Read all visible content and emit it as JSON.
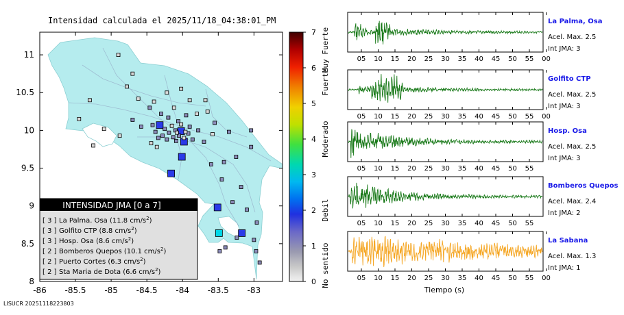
{
  "map": {
    "title": "Intensidad calculada el 2025/11/18_04:38:01_PM",
    "footer_id": "LISUCR 20251118223803",
    "x_ticks": [
      "-86",
      "-85.5",
      "-85",
      "-84.5",
      "-84",
      "-83.5",
      "-83"
    ],
    "y_ticks": [
      "8",
      "8.5",
      "9",
      "9.5",
      "10",
      "10.5",
      "11"
    ],
    "colorbar": {
      "ticks": [
        "0",
        "1",
        "2",
        "3",
        "4",
        "5",
        "6",
        "7"
      ],
      "labels": [
        "No sentido",
        "Debil",
        "Moderado",
        "Fuerte",
        "Muy Fuerte"
      ]
    },
    "legend": {
      "title": "INTENSIDAD JMA [0 a 7]",
      "items": [
        {
          "level": "[ 3 ]",
          "text": "La Palma. Osa (11.8 cm/s",
          "exp": "2",
          "close": ")"
        },
        {
          "level": "[ 3 ]",
          "text": "Golfito CTP (8.8 cm/s",
          "exp": "2",
          "close": ")"
        },
        {
          "level": "[ 3 ]",
          "text": "Hosp. Osa (8.6 cm/s",
          "exp": "2",
          "close": ")"
        },
        {
          "level": "[ 2 ]",
          "text": "Bomberos Quepos (10.1 cm/s",
          "exp": "2",
          "close": ")"
        },
        {
          "level": "[ 2 ]",
          "text": "Puerto Cortes (6.3 cm/s",
          "exp": "2",
          "close": ")"
        },
        {
          "level": "[ 2 ]",
          "text": "Sta Maria de Dota (6.6 cm/s",
          "exp": "2",
          "close": ")"
        }
      ]
    }
  },
  "seismograms": {
    "x_ticks": [
      "05",
      "10",
      "15",
      "20",
      "25",
      "30",
      "35",
      "40",
      "45",
      "50",
      "55",
      "00"
    ],
    "x_label": "Tiempo (s)",
    "panels": [
      {
        "station": "La Palma, Osa",
        "acel": "Acel. Max. 2.5",
        "jma": "Int JMA: 3",
        "color": "#1a7a1a",
        "profile": "burst"
      },
      {
        "station": "Golfito CTP",
        "acel": "Acel. Max. 2.5",
        "jma": "Int JMA: 3",
        "color": "#1a7a1a",
        "profile": "wide"
      },
      {
        "station": "Hosp. Osa",
        "acel": "Acel. Max. 2.5",
        "jma": "Int JMA: 3",
        "color": "#1a7a1a",
        "profile": "early"
      },
      {
        "station": "Bomberos Quepos",
        "acel": "Acel. Max. 2.4",
        "jma": "Int JMA: 2",
        "color": "#1a7a1a",
        "profile": "early"
      },
      {
        "station": "La Sabana",
        "acel": "Acel. Max. 1.3",
        "jma": "Int JMA: 1",
        "color": "#f5a623",
        "profile": "long"
      }
    ]
  },
  "chart_data": [
    {
      "type": "scatter",
      "title": "Intensidad calculada el 2025/11/18_04:38:01_PM",
      "xlabel": "",
      "ylabel": "",
      "xlim": [
        -86.0,
        -82.6
      ],
      "ylim": [
        8.0,
        11.3
      ],
      "colorbar_range": [
        0,
        7
      ],
      "stations": [
        {
          "lon": -84.32,
          "lat": 10.07,
          "jma": 2
        },
        {
          "lon": -84.02,
          "lat": 9.99,
          "jma": 2
        },
        {
          "lon": -83.98,
          "lat": 9.85,
          "jma": 2
        },
        {
          "lon": -84.01,
          "lat": 9.65,
          "jma": 2
        },
        {
          "lon": -84.16,
          "lat": 9.43,
          "jma": 2
        },
        {
          "lon": -83.51,
          "lat": 8.98,
          "jma": 2
        },
        {
          "lon": -83.49,
          "lat": 8.64,
          "jma": 3
        },
        {
          "lon": -83.17,
          "lat": 8.64,
          "jma": 2
        },
        {
          "lon": -84.05,
          "lat": 9.93,
          "jma": 1
        },
        {
          "lon": -84.13,
          "lat": 9.91,
          "jma": 1
        },
        {
          "lon": -84.19,
          "lat": 9.97,
          "jma": 1
        },
        {
          "lon": -84.22,
          "lat": 9.88,
          "jma": 1
        },
        {
          "lon": -84.09,
          "lat": 9.86,
          "jma": 1
        },
        {
          "lon": -84.28,
          "lat": 9.93,
          "jma": 1
        },
        {
          "lon": -84.42,
          "lat": 10.07,
          "jma": 1
        },
        {
          "lon": -84.38,
          "lat": 9.98,
          "jma": 1
        },
        {
          "lon": -84.34,
          "lat": 9.9,
          "jma": 1
        },
        {
          "lon": -84.25,
          "lat": 10.02,
          "jma": 1
        },
        {
          "lon": -84.1,
          "lat": 10.0,
          "jma": 1
        },
        {
          "lon": -84.06,
          "lat": 10.12,
          "jma": 1
        },
        {
          "lon": -83.92,
          "lat": 9.96,
          "jma": 1
        },
        {
          "lon": -83.9,
          "lat": 10.05,
          "jma": 1
        },
        {
          "lon": -83.86,
          "lat": 9.88,
          "jma": 1
        },
        {
          "lon": -83.78,
          "lat": 10.0,
          "jma": 1
        },
        {
          "lon": -83.7,
          "lat": 9.85,
          "jma": 1
        },
        {
          "lon": -84.3,
          "lat": 10.22,
          "jma": 1
        },
        {
          "lon": -84.2,
          "lat": 10.17,
          "jma": 1
        },
        {
          "lon": -83.95,
          "lat": 10.2,
          "jma": 1
        },
        {
          "lon": -84.46,
          "lat": 10.3,
          "jma": 1
        },
        {
          "lon": -84.58,
          "lat": 10.05,
          "jma": 1
        },
        {
          "lon": -84.7,
          "lat": 10.14,
          "jma": 1
        },
        {
          "lon": -83.55,
          "lat": 10.1,
          "jma": 1
        },
        {
          "lon": -83.35,
          "lat": 9.98,
          "jma": 1
        },
        {
          "lon": -83.25,
          "lat": 9.65,
          "jma": 1
        },
        {
          "lon": -83.6,
          "lat": 9.55,
          "jma": 1
        },
        {
          "lon": -83.04,
          "lat": 9.78,
          "jma": 1
        },
        {
          "lon": -83.04,
          "lat": 10.0,
          "jma": 1
        },
        {
          "lon": -83.45,
          "lat": 9.35,
          "jma": 1
        },
        {
          "lon": -83.3,
          "lat": 9.05,
          "jma": 1
        },
        {
          "lon": -83.1,
          "lat": 8.95,
          "jma": 1
        },
        {
          "lon": -82.96,
          "lat": 8.78,
          "jma": 1
        },
        {
          "lon": -83.0,
          "lat": 8.55,
          "jma": 1
        },
        {
          "lon": -83.24,
          "lat": 8.58,
          "jma": 1
        },
        {
          "lon": -83.4,
          "lat": 8.45,
          "jma": 1
        },
        {
          "lon": -83.48,
          "lat": 8.4,
          "jma": 1
        },
        {
          "lon": -82.97,
          "lat": 8.4,
          "jma": 1
        },
        {
          "lon": -82.92,
          "lat": 8.25,
          "jma": 1
        },
        {
          "lon": -83.18,
          "lat": 9.25,
          "jma": 1
        },
        {
          "lon": -83.42,
          "lat": 9.58,
          "jma": 1
        },
        {
          "lon": -84.02,
          "lat": 10.55,
          "jma": 0
        },
        {
          "lon": -84.7,
          "lat": 10.75,
          "jma": 0
        },
        {
          "lon": -84.9,
          "lat": 11.0,
          "jma": 0
        },
        {
          "lon": -84.78,
          "lat": 10.58,
          "jma": 0
        },
        {
          "lon": -85.3,
          "lat": 10.4,
          "jma": 0
        },
        {
          "lon": -85.45,
          "lat": 10.15,
          "jma": 0
        },
        {
          "lon": -85.1,
          "lat": 10.02,
          "jma": 0
        },
        {
          "lon": -84.88,
          "lat": 9.93,
          "jma": 0
        },
        {
          "lon": -84.62,
          "lat": 10.42,
          "jma": 0
        },
        {
          "lon": -84.22,
          "lat": 10.5,
          "jma": 0
        },
        {
          "lon": -83.9,
          "lat": 10.4,
          "jma": 0
        },
        {
          "lon": -83.68,
          "lat": 10.4,
          "jma": 0
        },
        {
          "lon": -84.12,
          "lat": 10.3,
          "jma": 0
        },
        {
          "lon": -84.4,
          "lat": 10.38,
          "jma": 0
        },
        {
          "lon": -83.8,
          "lat": 10.22,
          "jma": 0
        },
        {
          "lon": -83.65,
          "lat": 10.25,
          "jma": 0
        },
        {
          "lon": -84.44,
          "lat": 9.83,
          "jma": 0
        },
        {
          "lon": -84.36,
          "lat": 9.78,
          "jma": 0
        },
        {
          "lon": -83.58,
          "lat": 9.95,
          "jma": 0
        },
        {
          "lon": -84.02,
          "lat": 10.08,
          "jma": 0
        },
        {
          "lon": -84.15,
          "lat": 10.06,
          "jma": 0
        },
        {
          "lon": -84.08,
          "lat": 9.97,
          "jma": 0
        },
        {
          "lon": -83.96,
          "lat": 9.98,
          "jma": 0
        },
        {
          "lon": -85.25,
          "lat": 9.8,
          "jma": 0
        },
        {
          "lon": -83.98,
          "lat": 9.9,
          "jma": 0
        }
      ]
    },
    {
      "type": "line",
      "xlabel": "Tiempo (s)",
      "series": [
        {
          "name": "La Palma, Osa",
          "peak": 2.5,
          "jma": 3
        },
        {
          "name": "Golfito CTP",
          "peak": 2.5,
          "jma": 3
        },
        {
          "name": "Hosp. Osa",
          "peak": 2.5,
          "jma": 3
        },
        {
          "name": "Bomberos Quepos",
          "peak": 2.4,
          "jma": 2
        },
        {
          "name": "La Sabana",
          "peak": 1.3,
          "jma": 1
        }
      ]
    }
  ]
}
